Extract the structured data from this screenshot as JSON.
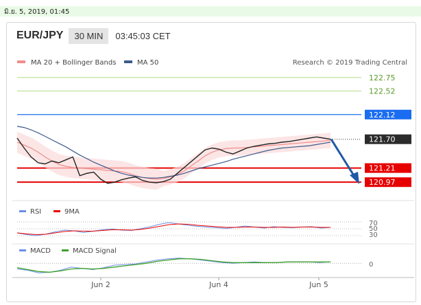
{
  "timestamp": "มิ.ย. 5, 2019, 01:45",
  "header": {
    "pair": "EUR/JPY",
    "timeframe": "30 MIN",
    "time": "03:45:03 CET"
  },
  "legend": {
    "ma20": "MA 20 + Bollinger Bands",
    "ma50": "MA 50",
    "credit": "Research © 2019 Trading Central"
  },
  "colors": {
    "ma20": "#f08c8c",
    "ma50": "#3a5a8c",
    "blue_level": "#1a6cf0",
    "red_level": "#e60000",
    "green_level": "#b5d98a",
    "rsi": "#6b8ee6",
    "rsi_ma": "#e60000",
    "macd": "#6b8ee6",
    "macd_signal": "#3da02a",
    "arrow": "#1f5aa6"
  },
  "chart_data": [
    {
      "type": "line",
      "title": "EUR/JPY",
      "x_tick_labels": [
        "Jun 2",
        "Jun 4",
        "Jun 5"
      ],
      "ylim": [
        120.75,
        122.9
      ],
      "levels": [
        {
          "value": 122.75,
          "label": "122.75",
          "style": "green"
        },
        {
          "value": 122.52,
          "label": "122.52",
          "style": "green"
        },
        {
          "value": 122.12,
          "label": "122.12",
          "style": "blue"
        },
        {
          "value": 121.7,
          "label": "121.70",
          "style": "current"
        },
        {
          "value": 121.21,
          "label": "121.21",
          "style": "red"
        },
        {
          "value": 120.97,
          "label": "120.97",
          "style": "red"
        }
      ],
      "series": [
        {
          "name": "MA 20 + Bollinger Bands",
          "values": [
            121.65,
            121.6,
            121.55,
            121.48,
            121.4,
            121.33,
            121.27,
            121.24,
            121.22,
            121.21,
            121.2,
            121.19,
            121.18,
            121.17,
            121.16,
            121.15,
            121.12,
            121.08,
            121.05,
            121.03,
            121.02,
            121.03,
            121.06,
            121.1,
            121.16,
            121.25,
            121.33,
            121.42,
            121.48,
            121.52,
            121.54,
            121.55,
            121.55,
            121.56,
            121.57,
            121.58,
            121.59,
            121.6,
            121.61,
            121.62,
            121.63,
            121.64,
            121.65,
            121.66,
            121.67,
            121.68
          ]
        },
        {
          "name": "MA 50",
          "values": [
            121.92,
            121.9,
            121.86,
            121.81,
            121.75,
            121.69,
            121.63,
            121.57,
            121.5,
            121.43,
            121.37,
            121.31,
            121.26,
            121.21,
            121.16,
            121.12,
            121.09,
            121.07,
            121.05,
            121.04,
            121.04,
            121.05,
            121.07,
            121.09,
            121.12,
            121.16,
            121.2,
            121.23,
            121.26,
            121.29,
            121.32,
            121.36,
            121.39,
            121.42,
            121.45,
            121.48,
            121.51,
            121.53,
            121.55,
            121.56,
            121.57,
            121.58,
            121.59,
            121.61,
            121.63,
            121.65
          ]
        },
        {
          "name": "EUR/JPY",
          "values": [
            121.72,
            121.55,
            121.4,
            121.3,
            121.28,
            121.33,
            121.3,
            121.35,
            121.4,
            121.08,
            121.12,
            121.14,
            121.02,
            120.95,
            120.97,
            121.01,
            121.04,
            121.06,
            121.0,
            120.97,
            120.96,
            120.98,
            121.02,
            121.12,
            121.22,
            121.32,
            121.42,
            121.52,
            121.55,
            121.53,
            121.48,
            121.45,
            121.5,
            121.55,
            121.58,
            121.6,
            121.62,
            121.63,
            121.65,
            121.66,
            121.68,
            121.7,
            121.72,
            121.74,
            121.72,
            121.7
          ]
        }
      ]
    },
    {
      "type": "line",
      "title": "RSI",
      "y_tick_labels": [
        "70",
        "50",
        "30"
      ],
      "series": [
        {
          "name": "RSI",
          "values": [
            38,
            33,
            30,
            34,
            41,
            46,
            44,
            39,
            43,
            47,
            49,
            46,
            45,
            50,
            56,
            63,
            68,
            64,
            60,
            57,
            55,
            53,
            51,
            54,
            58,
            55,
            52,
            56,
            54,
            53,
            55,
            56,
            52,
            54
          ]
        },
        {
          "name": "9MA",
          "values": [
            38,
            35,
            33,
            34,
            38,
            42,
            44,
            43,
            43,
            45,
            47,
            47,
            46,
            48,
            52,
            57,
            62,
            64,
            63,
            60,
            58,
            56,
            54,
            54,
            55,
            55,
            54,
            54,
            55,
            54,
            55,
            55,
            54,
            54
          ]
        }
      ]
    },
    {
      "type": "line",
      "title": "MACD",
      "y_tick_labels": [
        "0"
      ],
      "series": [
        {
          "name": "MACD",
          "values": [
            -0.09,
            -0.11,
            -0.15,
            -0.14,
            -0.11,
            -0.06,
            -0.08,
            -0.1,
            -0.07,
            -0.03,
            -0.02,
            -0.01,
            0.02,
            0.05,
            0.07,
            0.08,
            0.07,
            0.05,
            0.03,
            0.01,
            0.0,
            0.01,
            0.02,
            0.01,
            0.01,
            0.02,
            0.02,
            0.02,
            0.01,
            0.02
          ]
        },
        {
          "name": "MACD Signal",
          "values": [
            -0.07,
            -0.1,
            -0.13,
            -0.14,
            -0.12,
            -0.09,
            -0.08,
            -0.09,
            -0.08,
            -0.06,
            -0.04,
            -0.02,
            0.0,
            0.03,
            0.05,
            0.07,
            0.07,
            0.06,
            0.04,
            0.02,
            0.01,
            0.01,
            0.01,
            0.01,
            0.01,
            0.02,
            0.02,
            0.02,
            0.02,
            0.02
          ]
        }
      ]
    }
  ]
}
